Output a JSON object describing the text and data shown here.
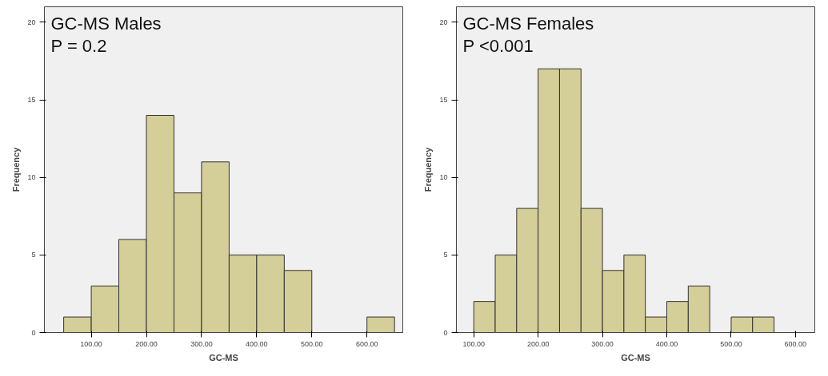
{
  "chart_data": [
    {
      "type": "histogram",
      "xlabel": "GC-MS",
      "ylabel": "Frequency",
      "annotations": [
        "GC-MS Males",
        "P = 0.2"
      ],
      "color": "#d4cf98",
      "bins": [
        50,
        100,
        150,
        200,
        250,
        300,
        350,
        400,
        450,
        500,
        550,
        600,
        650
      ],
      "values": [
        1,
        3,
        6,
        14,
        9,
        11,
        5,
        5,
        4,
        0,
        0,
        1
      ],
      "xlim": [
        15,
        665
      ],
      "ylim": [
        0,
        21
      ],
      "xticks": [
        {
          "value": 100,
          "label": "100.00"
        },
        {
          "value": 200,
          "label": "200.00"
        },
        {
          "value": 300,
          "label": "300.00"
        },
        {
          "value": 400,
          "label": "400.00"
        },
        {
          "value": 500,
          "label": "500.00"
        },
        {
          "value": 600,
          "label": "600.00"
        }
      ],
      "yticks": [
        0,
        5,
        10,
        15,
        20
      ],
      "grid": false
    },
    {
      "type": "histogram",
      "xlabel": "GC-MS",
      "ylabel": "Frequency",
      "annotations": [
        "GC-MS Females",
        "P <0.001"
      ],
      "color": "#d4cf98",
      "bins": [
        100,
        133.33,
        166.67,
        200,
        233.33,
        266.67,
        300,
        333.33,
        366.67,
        400,
        433.33,
        466.67,
        500,
        533.33,
        566.67
      ],
      "values": [
        2,
        5,
        8,
        17,
        17,
        8,
        4,
        5,
        1,
        2,
        3,
        0,
        1,
        1
      ],
      "xlim": [
        73,
        630
      ],
      "ylim": [
        0,
        21
      ],
      "xticks": [
        {
          "value": 100,
          "label": "100.00"
        },
        {
          "value": 200,
          "label": "200.00"
        },
        {
          "value": 300,
          "label": "300.00"
        },
        {
          "value": 400,
          "label": "400.00"
        },
        {
          "value": 500,
          "label": "500.00"
        },
        {
          "value": 600,
          "label": "600.00"
        }
      ],
      "yticks": [
        0,
        5,
        10,
        15,
        20
      ],
      "grid": false
    }
  ]
}
